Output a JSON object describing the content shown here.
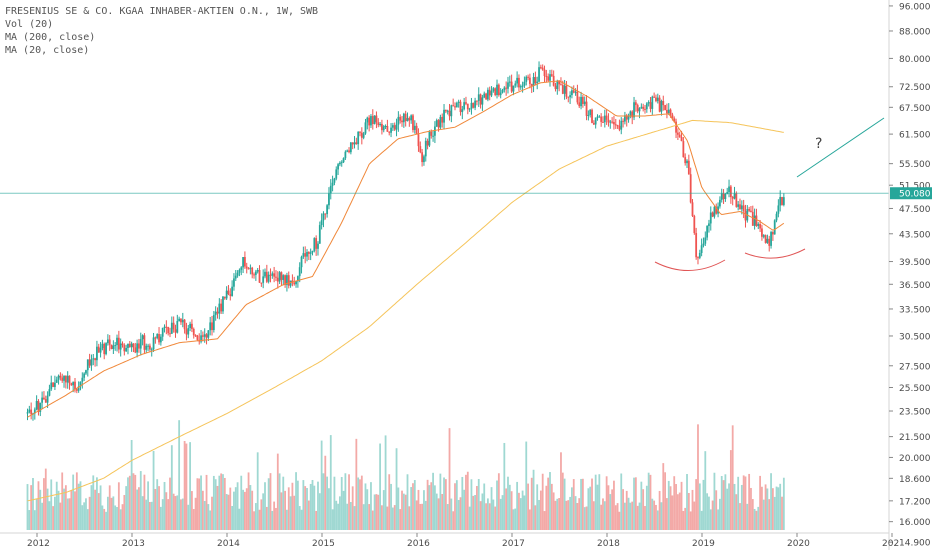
{
  "legend": {
    "title": "FRESENIUS SE & CO. KGAA INHABER-AKTIEN O.N., 1W, SWB",
    "vol": "Vol (20)",
    "ma200": "MA (200, close)",
    "ma20": "MA (20, close)"
  },
  "annotation": {
    "question": "?"
  },
  "chart_data": {
    "type": "candlestick",
    "y_scale": "log",
    "ylim": [
      14.5,
      98
    ],
    "y_ticks": [
      "96.000",
      "88.000",
      "80.000",
      "72.500",
      "67.500",
      "61.500",
      "55.500",
      "51.500",
      "50.080",
      "47.500",
      "43.500",
      "39.500",
      "36.500",
      "33.500",
      "30.500",
      "27.500",
      "25.500",
      "23.500",
      "21.500",
      "20.000",
      "18.600",
      "17.200",
      "16.000",
      "14.900"
    ],
    "x_ticks": [
      "2012",
      "2013",
      "2014",
      "2015",
      "2016",
      "2017",
      "2018",
      "2019",
      "2020",
      "202"
    ],
    "last_price": "50.080",
    "colors": {
      "up": "#26a69a",
      "down": "#ef5350",
      "ma20": "#f0883a",
      "ma200": "#f5c45a",
      "price_line": "#26a69a",
      "arc": "#e05555",
      "trend": "#26a69a"
    },
    "price_path": [
      [
        "2011.9",
        23.3
      ],
      [
        "2012.0",
        23.8
      ],
      [
        "2012.2",
        26.0
      ],
      [
        "2012.3",
        26.5
      ],
      [
        "2012.4",
        25.2
      ],
      [
        "2012.5",
        27.2
      ],
      [
        "2012.6",
        28.6
      ],
      [
        "2012.8",
        30.0
      ],
      [
        "2013.0",
        29.0
      ],
      [
        "2013.1",
        29.9
      ],
      [
        "2013.2",
        29.5
      ],
      [
        "2013.35",
        31.2
      ],
      [
        "2013.5",
        31.8
      ],
      [
        "2013.6",
        31.2
      ],
      [
        "2013.75",
        30.0
      ],
      [
        "2013.9",
        33.0
      ],
      [
        "2014.05",
        36.0
      ],
      [
        "2014.15",
        39.5
      ],
      [
        "2014.3",
        37.6
      ],
      [
        "2014.5",
        37.5
      ],
      [
        "2014.7",
        37.0
      ],
      [
        "2014.8",
        40.0
      ],
      [
        "2014.95",
        42.5
      ],
      [
        "2015.05",
        48.0
      ],
      [
        "2015.2",
        57.0
      ],
      [
        "2015.35",
        60.5
      ],
      [
        "2015.55",
        65.5
      ],
      [
        "2015.7",
        61.0
      ],
      [
        "2015.8",
        65.5
      ],
      [
        "2015.95",
        64.5
      ],
      [
        "2016.05",
        57.0
      ],
      [
        "2016.2",
        64.0
      ],
      [
        "2016.4",
        67.5
      ],
      [
        "2016.55",
        68.0
      ],
      [
        "2016.7",
        69.5
      ],
      [
        "2016.85",
        72.0
      ],
      [
        "2017.0",
        73.0
      ],
      [
        "2017.1",
        74.5
      ],
      [
        "2017.2",
        74.0
      ],
      [
        "2017.3",
        76.5
      ],
      [
        "2017.45",
        73.5
      ],
      [
        "2017.55",
        72.0
      ],
      [
        "2017.7",
        69.5
      ],
      [
        "2017.85",
        65.0
      ],
      [
        "2018.0",
        64.5
      ],
      [
        "2018.15",
        64.0
      ],
      [
        "2018.3",
        67.5
      ],
      [
        "2018.45",
        68.5
      ],
      [
        "2018.6",
        68.0
      ],
      [
        "2018.65",
        67.0
      ],
      [
        "2018.75",
        62.0
      ],
      [
        "2018.85",
        55.0
      ],
      [
        "2018.95",
        39.5
      ],
      [
        "2019.0",
        42.5
      ],
      [
        "2019.1",
        46.5
      ],
      [
        "2019.2",
        49.0
      ],
      [
        "2019.3",
        50.5
      ],
      [
        "2019.4",
        47.0
      ],
      [
        "2019.5",
        46.5
      ],
      [
        "2019.6",
        44.5
      ],
      [
        "2019.7",
        42.0
      ],
      [
        "2019.75",
        43.5
      ],
      [
        "2019.82",
        48.5
      ],
      [
        "2019.88",
        50.08
      ]
    ],
    "ma20_path": [
      [
        "2011.9",
        23.0
      ],
      [
        "2012.3",
        24.8
      ],
      [
        "2012.7",
        27.0
      ],
      [
        "2013.1",
        28.6
      ],
      [
        "2013.5",
        29.8
      ],
      [
        "2013.9",
        30.2
      ],
      [
        "2014.2",
        34.0
      ],
      [
        "2014.6",
        36.5
      ],
      [
        "2014.9",
        37.5
      ],
      [
        "2015.2",
        45.0
      ],
      [
        "2015.5",
        55.5
      ],
      [
        "2015.8",
        60.5
      ],
      [
        "2016.1",
        62.0
      ],
      [
        "2016.4",
        63.0
      ],
      [
        "2016.7",
        66.5
      ],
      [
        "2017.0",
        70.5
      ],
      [
        "2017.3",
        73.5
      ],
      [
        "2017.5",
        74.0
      ],
      [
        "2017.8",
        70.0
      ],
      [
        "2018.1",
        65.5
      ],
      [
        "2018.4",
        65.5
      ],
      [
        "2018.65",
        66.0
      ],
      [
        "2018.85",
        60.0
      ],
      [
        "2019.0",
        51.0
      ],
      [
        "2019.2",
        46.5
      ],
      [
        "2019.4",
        47.0
      ],
      [
        "2019.6",
        45.5
      ],
      [
        "2019.75",
        44.0
      ],
      [
        "2019.88",
        45.3
      ]
    ],
    "ma200_path": [
      [
        "2011.9",
        17.2
      ],
      [
        "2012.3",
        17.7
      ],
      [
        "2012.7",
        18.6
      ],
      [
        "2013.0",
        19.8
      ],
      [
        "2013.5",
        21.5
      ],
      [
        "2014.0",
        23.3
      ],
      [
        "2014.5",
        25.5
      ],
      [
        "2015.0",
        28.0
      ],
      [
        "2015.5",
        31.5
      ],
      [
        "2016.0",
        36.5
      ],
      [
        "2016.5",
        42.0
      ],
      [
        "2017.0",
        48.5
      ],
      [
        "2017.5",
        54.5
      ],
      [
        "2018.0",
        59.0
      ],
      [
        "2018.5",
        62.0
      ],
      [
        "2018.9",
        64.5
      ],
      [
        "2019.3",
        64.0
      ],
      [
        "2019.88",
        61.8
      ]
    ]
  }
}
